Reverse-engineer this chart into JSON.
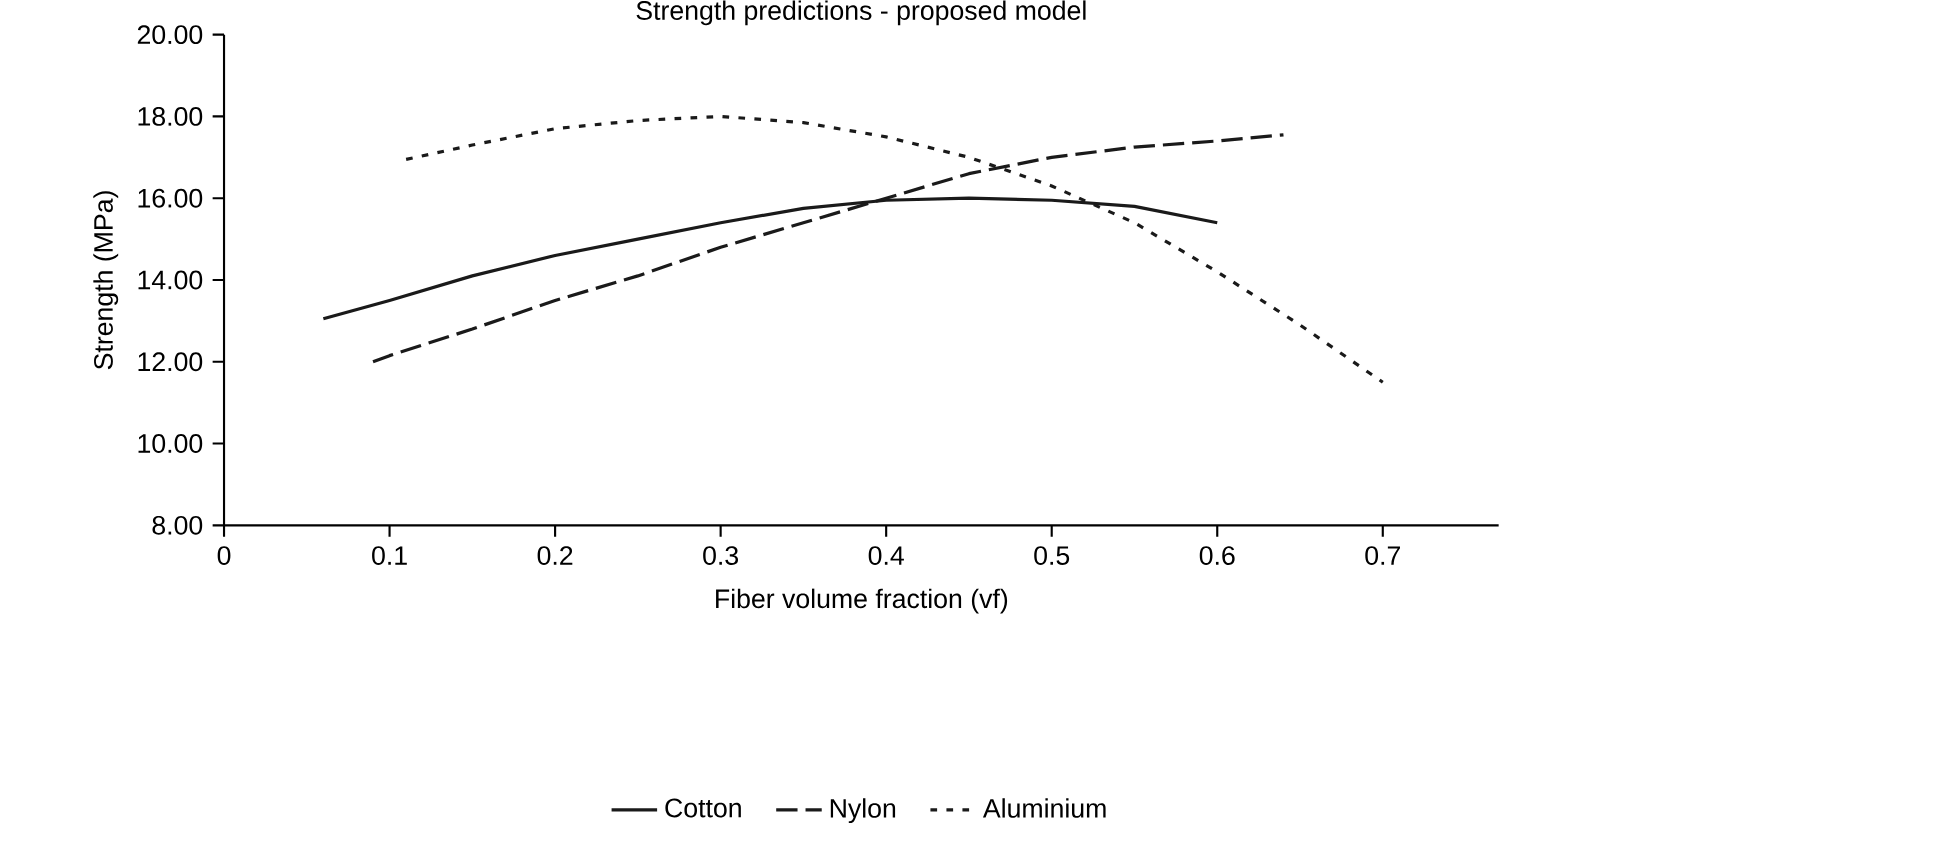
{
  "chart_data": {
    "type": "line",
    "title": "Strength predictions - proposed model",
    "xlabel": "Fiber volume fraction (vf)",
    "ylabel": "Strength (MPa)",
    "xlim": [
      0,
      0.77
    ],
    "xticks": [
      0,
      0.1,
      0.2,
      0.3,
      0.4,
      0.5,
      0.6,
      0.7
    ],
    "ylim": [
      8,
      20
    ],
    "yticks": [
      {
        "value": 8,
        "label": "8.00"
      },
      {
        "value": 10,
        "label": "10.00"
      },
      {
        "value": 12,
        "label": "12.00"
      },
      {
        "value": 14,
        "label": "14.00"
      },
      {
        "value": 16,
        "label": "16.00"
      },
      {
        "value": 18,
        "label": "18.00"
      },
      {
        "value": 20,
        "label": "20.00"
      }
    ],
    "grid": false,
    "legend": "bottom",
    "marker": "none",
    "series": [
      {
        "name": "Cotton",
        "color": "#1a1a1a",
        "line_style": "solid",
        "x": [
          0.06,
          0.1,
          0.15,
          0.2,
          0.25,
          0.3,
          0.35,
          0.4,
          0.45,
          0.5,
          0.55,
          0.6
        ],
        "values": [
          13.05,
          13.5,
          14.1,
          14.6,
          15.0,
          15.4,
          15.75,
          15.95,
          16.0,
          15.95,
          15.8,
          15.4
        ]
      },
      {
        "name": "Nylon",
        "color": "#1a1a1a",
        "line_style": "dashed",
        "x": [
          0.09,
          0.1,
          0.15,
          0.2,
          0.25,
          0.3,
          0.35,
          0.4,
          0.45,
          0.5,
          0.55,
          0.6,
          0.64
        ],
        "values": [
          12.0,
          12.15,
          12.8,
          13.5,
          14.1,
          14.8,
          15.4,
          16.0,
          16.6,
          17.0,
          17.25,
          17.4,
          17.55
        ]
      },
      {
        "name": "Aluminium",
        "color": "#1a1a1a",
        "line_style": "dotted",
        "x": [
          0.11,
          0.15,
          0.2,
          0.25,
          0.3,
          0.35,
          0.4,
          0.45,
          0.5,
          0.55,
          0.6,
          0.65,
          0.7
        ],
        "values": [
          16.95,
          17.3,
          17.7,
          17.9,
          18.0,
          17.85,
          17.5,
          17.0,
          16.3,
          15.4,
          14.2,
          12.9,
          11.5
        ]
      }
    ]
  }
}
